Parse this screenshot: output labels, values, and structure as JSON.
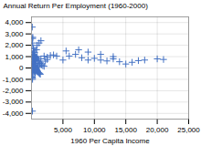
{
  "chart_data": {
    "type": "scatter",
    "xlabel": "1960 Per Capita Income",
    "ylabel": "Annual Return Per Employment (1960-2000)",
    "xlim": [
      0,
      25000
    ],
    "ylim": [
      -4500,
      4500
    ],
    "xticks": [
      {
        "value": 5000,
        "label": "5,000"
      },
      {
        "value": 10000,
        "label": "10,000"
      },
      {
        "value": 15000,
        "label": "15,000"
      },
      {
        "value": 20000,
        "label": "20,000"
      },
      {
        "value": 25000,
        "label": "25,000"
      }
    ],
    "yticks": [
      {
        "value": -4000,
        "label": "-4,000"
      },
      {
        "value": -3000,
        "label": "-3,000"
      },
      {
        "value": -2000,
        "label": "-2,000"
      },
      {
        "value": -1000,
        "label": "-1,000"
      },
      0,
      {
        "value": 1000,
        "label": "1,000"
      },
      {
        "value": 2000,
        "label": "2,000"
      },
      {
        "value": 3000,
        "label": "3,000"
      },
      {
        "value": 4000,
        "label": "4,000"
      }
    ],
    "grid": true,
    "color": "#4472c4",
    "marker": "plus",
    "x": [
      120,
      200,
      180,
      160,
      250,
      300,
      350,
      400,
      500,
      180,
      220,
      280,
      350,
      400,
      500,
      600,
      250,
      300,
      400,
      450,
      550,
      700,
      800,
      900,
      150,
      200,
      300,
      350,
      400,
      500,
      600,
      700,
      800,
      1000,
      1200,
      1500,
      2000,
      2500,
      3000,
      3500,
      4000,
      5000,
      6000,
      7000,
      8000,
      9000,
      10000,
      11000,
      12000,
      13000,
      14000,
      15000,
      16000,
      17000,
      18000,
      20000,
      21000,
      150,
      180,
      200,
      220,
      250,
      300,
      350,
      400,
      450,
      500,
      550,
      600,
      650,
      700,
      750,
      800,
      850,
      900,
      950,
      1000,
      1100,
      1200,
      1300,
      1400,
      1600,
      1800,
      2000,
      2200,
      2500,
      150,
      200,
      250,
      300,
      400,
      500,
      600,
      700,
      800,
      900,
      1000,
      1100,
      1300,
      1400,
      100,
      120,
      130,
      140,
      150,
      160,
      170,
      180,
      190,
      210,
      230,
      260,
      290,
      320,
      360,
      390,
      420,
      460,
      500,
      550,
      600,
      900,
      1200,
      1500,
      800,
      5500,
      7500,
      9000,
      11000,
      13000
    ],
    "values": [
      3600,
      2700,
      2600,
      2200,
      1800,
      1700,
      1500,
      1400,
      1350,
      1200,
      1200,
      1100,
      1000,
      1050,
      1050,
      1000,
      1100,
      1050,
      950,
      900,
      950,
      900,
      950,
      1000,
      950,
      850,
      850,
      800,
      750,
      700,
      700,
      700,
      650,
      620,
      600,
      800,
      1050,
      950,
      1100,
      1150,
      1050,
      700,
      1050,
      1200,
      900,
      700,
      850,
      700,
      620,
      800,
      550,
      350,
      500,
      650,
      700,
      800,
      750,
      600,
      550,
      500,
      430,
      400,
      350,
      300,
      250,
      200,
      150,
      100,
      50,
      0,
      -50,
      -100,
      -150,
      -200,
      -250,
      -300,
      -350,
      -400,
      -450,
      -500,
      -550,
      280,
      200,
      150,
      600,
      750,
      -3800,
      100,
      -50,
      -100,
      -200,
      -300,
      -400,
      -250,
      -100,
      50,
      100,
      200,
      400,
      450,
      -500,
      -600,
      -700,
      -800,
      -900,
      -1000,
      -400,
      -300,
      -200,
      -100,
      0,
      100,
      200,
      250,
      200,
      100,
      0,
      -100,
      -200,
      -300,
      -350,
      2000,
      2200,
      2400,
      1600,
      1500,
      1600,
      1400,
      1200,
      1000
    ]
  }
}
